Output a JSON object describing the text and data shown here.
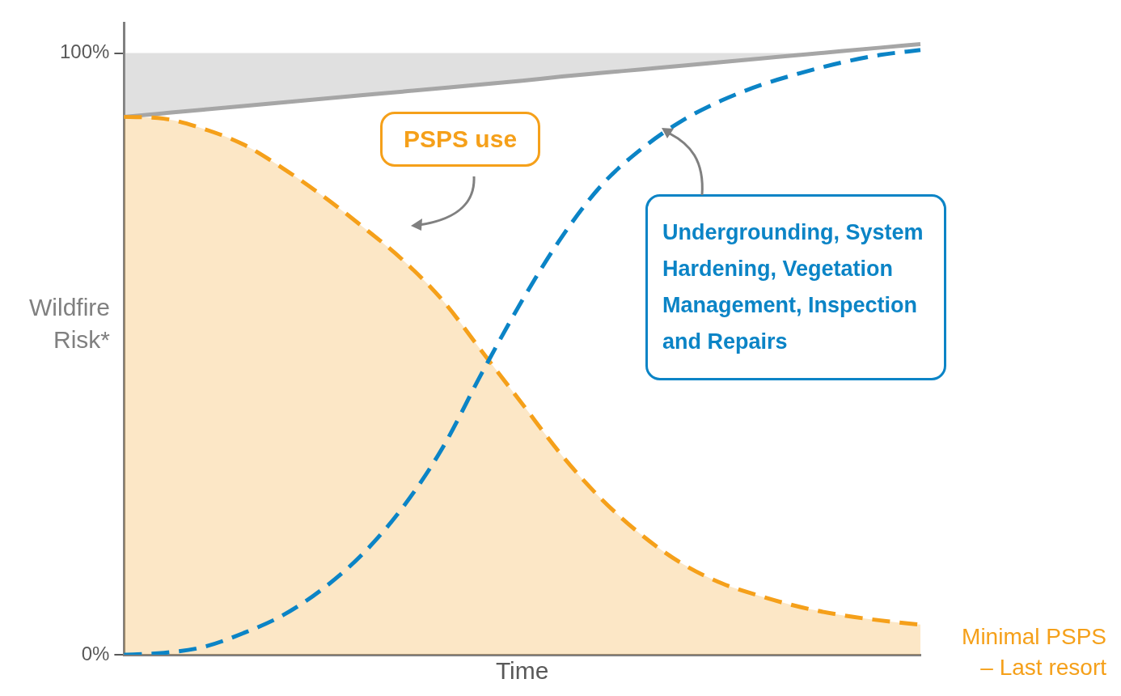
{
  "chart_data": {
    "type": "line",
    "xlabel": "Time",
    "ylabel": "Wildfire Risk*",
    "categories": [
      null,
      null,
      null,
      null,
      null,
      null,
      null,
      null,
      null,
      null,
      null,
      null,
      null,
      null,
      null,
      null,
      null,
      null,
      null,
      null,
      null
    ],
    "ylim": [
      0,
      105
    ],
    "yticks": [
      {
        "value": 0,
        "label": "0%"
      },
      {
        "value": 100,
        "label": "100%"
      }
    ],
    "tick_labels": "y",
    "legend": false,
    "series": [
      {
        "type": "line",
        "color": "#a6a6a6",
        "line_style": "solid",
        "values": [
          89.4,
          90.0,
          90.6,
          91.2,
          91.8,
          92.4,
          93.0,
          93.6,
          94.2,
          94.8,
          95.4,
          96.1,
          96.7,
          97.3,
          97.9,
          98.5,
          99.1,
          99.7,
          100.3,
          100.9,
          101.5
        ],
        "lower": [
          89.4,
          90.0,
          90.6,
          91.2,
          91.8,
          92.4,
          93.0,
          93.6,
          94.2,
          94.8,
          95.4,
          96.1,
          96.7,
          97.3,
          97.9,
          98.5,
          99.1,
          99.7,
          100.3,
          100.9,
          101.5
        ],
        "upper": [
          100,
          100,
          100,
          100,
          100,
          100,
          100,
          100,
          100,
          100,
          100,
          100,
          100,
          100,
          100,
          100,
          100,
          100,
          100.3,
          100.9,
          101.5
        ]
      },
      {
        "type": "area",
        "name": "PSPS use",
        "color": "#f5a01a",
        "line_style": "dashed",
        "values": [
          89.4,
          89.1,
          87.4,
          84.8,
          80.8,
          76.2,
          71.1,
          65.6,
          58.9,
          50.3,
          41.7,
          33.1,
          25.8,
          19.9,
          15.2,
          11.9,
          9.7,
          7.9,
          6.6,
          5.7,
          5.0
        ]
      },
      {
        "type": "line",
        "name": "Undergrounding, System Hardening, Vegetation Management, Inspection and Repairs",
        "color": "#0b84c6",
        "line_style": "dashed",
        "values": [
          0,
          0.3,
          1.3,
          3.6,
          6.6,
          11.0,
          16.8,
          24.5,
          34.4,
          47.0,
          58.9,
          69.5,
          78.1,
          84.1,
          88.7,
          92.1,
          94.7,
          96.7,
          98.4,
          99.7,
          100.5
        ]
      }
    ],
    "annotations": [
      "Minimal PSPS – Last resort"
    ]
  }
}
